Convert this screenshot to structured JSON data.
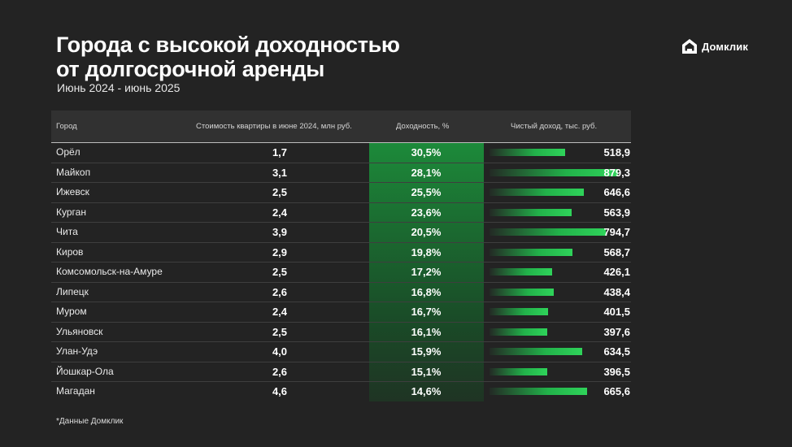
{
  "header": {
    "title_line1": "Города с высокой доходностью",
    "title_line2": "от долгосрочной аренды",
    "subtitle": "Июнь 2024 - июнь 2025"
  },
  "logo": {
    "text": "Домклик",
    "icon": "house-icon"
  },
  "colors": {
    "background": "#232323",
    "accent": "#22b24a",
    "header_row": "#313131"
  },
  "footnote": "*Данные Домклик",
  "chart_data": {
    "type": "table",
    "columns": [
      "Город",
      "Стоимость квартиры в июне 2024, млн руб.",
      "Доходность, %",
      "Чистый доход, тыс. руб."
    ],
    "rows": [
      {
        "city": "Орёл",
        "price": "1,7",
        "yield": "30,5%",
        "income": "518,9",
        "income_value": 518.9
      },
      {
        "city": "Майкоп",
        "price": "3,1",
        "yield": "28,1%",
        "income": "879,3",
        "income_value": 879.3
      },
      {
        "city": "Ижевск",
        "price": "2,5",
        "yield": "25,5%",
        "income": "646,6",
        "income_value": 646.6
      },
      {
        "city": "Курган",
        "price": "2,4",
        "yield": "23,6%",
        "income": "563,9",
        "income_value": 563.9
      },
      {
        "city": "Чита",
        "price": "3,9",
        "yield": "20,5%",
        "income": "794,7",
        "income_value": 794.7
      },
      {
        "city": "Киров",
        "price": "2,9",
        "yield": "19,8%",
        "income": "568,7",
        "income_value": 568.7
      },
      {
        "city": "Комсомольск-на-Амуре",
        "price": "2,5",
        "yield": "17,2%",
        "income": "426,1",
        "income_value": 426.1
      },
      {
        "city": "Липецк",
        "price": "2,6",
        "yield": "16,8%",
        "income": "438,4",
        "income_value": 438.4
      },
      {
        "city": "Муром",
        "price": "2,4",
        "yield": "16,7%",
        "income": "401,5",
        "income_value": 401.5
      },
      {
        "city": "Ульяновск",
        "price": "2,5",
        "yield": "16,1%",
        "income": "397,6",
        "income_value": 397.6
      },
      {
        "city": "Улан-Удэ",
        "price": "4,0",
        "yield": "15,9%",
        "income": "634,5",
        "income_value": 634.5
      },
      {
        "city": "Йошкар-Ола",
        "price": "2,6",
        "yield": "15,1%",
        "income": "396,5",
        "income_value": 396.5
      },
      {
        "city": "Магадан",
        "price": "4,6",
        "yield": "14,6%",
        "income": "665,6",
        "income_value": 665.6
      }
    ]
  }
}
